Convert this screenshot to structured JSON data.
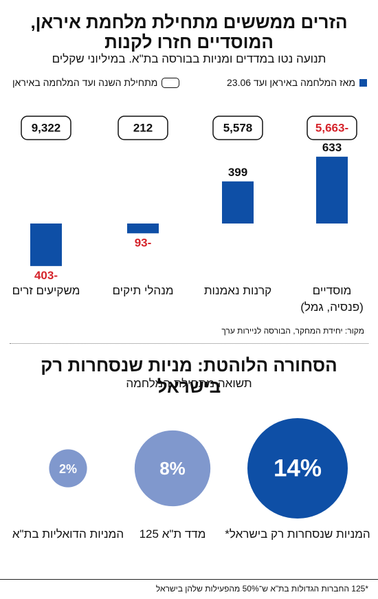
{
  "chart1": {
    "title": "הזרים ממששים מתחילת מלחמת איראן, המוסדיים חזרו לקנות",
    "subtitle": "תנועה נטו במדדים ומניות בבורסה בת\"א. במיליוני שקלים",
    "legend": {
      "fill_label": "מאז המלחמה באיראן ועד 23.06",
      "outline_label": "מתחילת השנה ועד המלחמה באיראן"
    },
    "source": "מקור: יחידת המחקר, הבורסה לניירות ערך"
  },
  "chart2": {
    "title": "הסחורה הלוהטת: מניות שנסחרות רק בישראל",
    "subtitle": "תשואה מתחילת המלחמה",
    "footnote": "*125 החברות הגדולות בת\"א ש־50% מהפעילות שלהן בישראל"
  },
  "colors": {
    "bar": "#0e4fa6",
    "negative_text": "#d5242b",
    "bubble_large": "#0e4fa6",
    "bubble_mid": "#8098cd",
    "bubble_small": "#8098cd"
  },
  "chart_data": [
    {
      "type": "bar",
      "categories": [
        "מוסדיים\n(פנסיה, גמל)",
        "קרנות נאמנות",
        "מנהלי תיקים",
        "משקיעים זרים"
      ],
      "series": [
        {
          "name": "מאז המלחמה באיראן ועד 23.06",
          "values": [
            633,
            399,
            -93,
            -403
          ],
          "labels": [
            "633",
            "399",
            "-93",
            "-403"
          ]
        },
        {
          "name": "מתחילת השנה ועד המלחמה באיראן",
          "values": [
            -5663,
            5578,
            212,
            9322
          ],
          "labels": [
            "-5,663",
            "5,578",
            "212",
            "9,322"
          ]
        }
      ],
      "title": "הזרים ממששים מתחילת מלחמת איראן, המוסדיים חזרו לקנות",
      "ylabel": "במיליוני שקלים"
    },
    {
      "type": "scatter",
      "categories": [
        "המניות שנסחרות רק בישראל*",
        "מדד ת\"א 125",
        "המניות הדואליות בת\"א"
      ],
      "values": [
        14,
        8,
        2
      ],
      "labels": [
        "14%",
        "8%",
        "2%"
      ],
      "unit": "%",
      "title": "הסחורה הלוהטת: מניות שנסחרות רק בישראל"
    }
  ]
}
